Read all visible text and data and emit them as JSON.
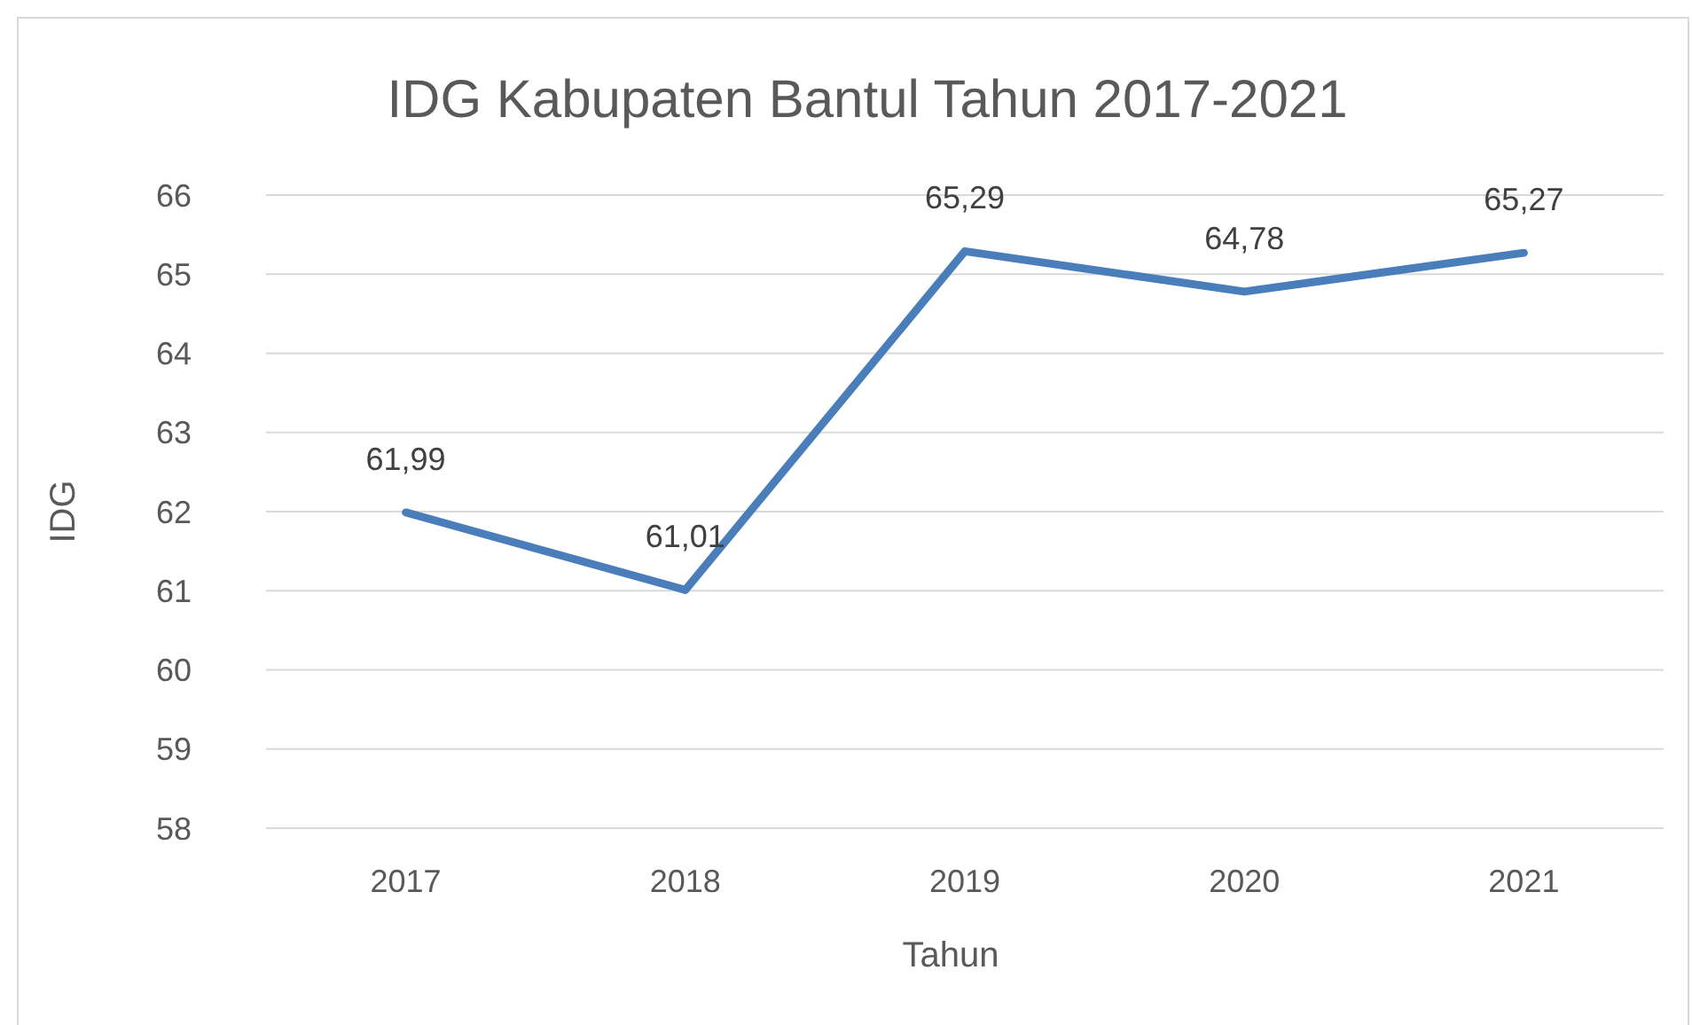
{
  "chart_data": {
    "type": "line",
    "title": "IDG Kabupaten Bantul Tahun 2017-2021",
    "xlabel": "Tahun",
    "ylabel": "IDG",
    "categories": [
      "2017",
      "2018",
      "2019",
      "2020",
      "2021"
    ],
    "values": [
      61.99,
      61.01,
      65.29,
      64.78,
      65.27
    ],
    "value_labels": [
      "61,99",
      "61,01",
      "65,29",
      "64,78",
      "65,27"
    ],
    "color": "#4a7ebb",
    "ylim": [
      58,
      66
    ],
    "yticks": [
      58,
      59,
      60,
      61,
      62,
      63,
      64,
      65,
      66
    ],
    "grid": "y"
  }
}
